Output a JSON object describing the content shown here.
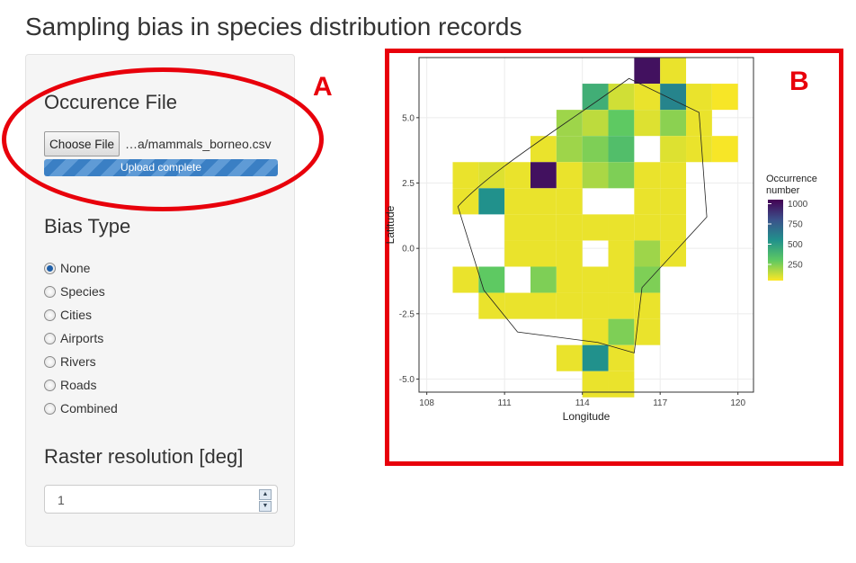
{
  "page_title": "Sampling bias in species distribution records",
  "sidebar": {
    "occurrence_file": {
      "heading": "Occurence File",
      "choose_button": "Choose File",
      "file_name": "…a/mammals_borneo.csv",
      "progress_text": "Upload complete",
      "progress": 1.0
    },
    "bias_type": {
      "heading": "Bias Type",
      "selected": "None",
      "options": [
        "None",
        "Species",
        "Cities",
        "Airports",
        "Rivers",
        "Roads",
        "Combined"
      ]
    },
    "raster_resolution": {
      "heading": "Raster resolution [deg]",
      "value": "1"
    }
  },
  "annotations": {
    "a": "A",
    "b": "B"
  },
  "colors": {
    "annotation_red": "#e8000b",
    "progress_blue": "#3a7fc4"
  },
  "chart_data": {
    "type": "heatmap",
    "title": "",
    "xlabel": "Longitude",
    "ylabel": "Latitude",
    "xlim": [
      107.7,
      120.6
    ],
    "ylim": [
      -5.5,
      7.3
    ],
    "x_ticks": [
      "108",
      "111",
      "114",
      "117",
      "120"
    ],
    "x_tick_values": [
      108,
      111,
      114,
      117,
      120
    ],
    "y_ticks": [
      "5.0",
      "2.5",
      "0.0",
      "-2.5",
      "-5.0"
    ],
    "y_tick_values": [
      5.0,
      2.5,
      0.0,
      -2.5,
      -5.0
    ],
    "grid": true,
    "legend": {
      "title_line1": "Occurrence",
      "title_line2": "number",
      "labels": [
        "1000",
        "750",
        "500",
        "250"
      ],
      "label_values": [
        1000,
        750,
        500,
        250
      ],
      "min": 50,
      "max": 1050,
      "placement": "right"
    },
    "cells": [
      {
        "lon": 116.5,
        "lat": 6.8,
        "v": 1000
      },
      {
        "lon": 117.5,
        "lat": 6.8,
        "v": 80
      },
      {
        "lon": 114.5,
        "lat": 5.8,
        "v": 420
      },
      {
        "lon": 115.5,
        "lat": 5.8,
        "v": 120
      },
      {
        "lon": 116.5,
        "lat": 5.8,
        "v": 80
      },
      {
        "lon": 117.5,
        "lat": 5.8,
        "v": 600
      },
      {
        "lon": 118.5,
        "lat": 5.8,
        "v": 80
      },
      {
        "lon": 119.5,
        "lat": 5.8,
        "v": 60
      },
      {
        "lon": 113.5,
        "lat": 4.8,
        "v": 200
      },
      {
        "lon": 114.5,
        "lat": 4.8,
        "v": 150
      },
      {
        "lon": 115.5,
        "lat": 4.8,
        "v": 300
      },
      {
        "lon": 116.5,
        "lat": 4.8,
        "v": 100
      },
      {
        "lon": 117.5,
        "lat": 4.8,
        "v": 230
      },
      {
        "lon": 118.5,
        "lat": 4.8,
        "v": 80
      },
      {
        "lon": 112.5,
        "lat": 3.8,
        "v": 80
      },
      {
        "lon": 113.5,
        "lat": 3.8,
        "v": 200
      },
      {
        "lon": 114.5,
        "lat": 3.8,
        "v": 250
      },
      {
        "lon": 115.5,
        "lat": 3.8,
        "v": 350
      },
      {
        "lon": 117.5,
        "lat": 3.8,
        "v": 100
      },
      {
        "lon": 118.5,
        "lat": 3.8,
        "v": 80
      },
      {
        "lon": 119.5,
        "lat": 3.8,
        "v": 60
      },
      {
        "lon": 109.5,
        "lat": 2.8,
        "v": 80
      },
      {
        "lon": 110.5,
        "lat": 2.8,
        "v": 100
      },
      {
        "lon": 111.5,
        "lat": 2.8,
        "v": 80
      },
      {
        "lon": 112.5,
        "lat": 2.8,
        "v": 1000
      },
      {
        "lon": 113.5,
        "lat": 2.8,
        "v": 80
      },
      {
        "lon": 114.5,
        "lat": 2.8,
        "v": 180
      },
      {
        "lon": 115.5,
        "lat": 2.8,
        "v": 250
      },
      {
        "lon": 116.5,
        "lat": 2.8,
        "v": 80
      },
      {
        "lon": 117.5,
        "lat": 2.8,
        "v": 80
      },
      {
        "lon": 109.5,
        "lat": 1.8,
        "v": 80
      },
      {
        "lon": 110.5,
        "lat": 1.8,
        "v": 550
      },
      {
        "lon": 111.5,
        "lat": 1.8,
        "v": 80
      },
      {
        "lon": 112.5,
        "lat": 1.8,
        "v": 80
      },
      {
        "lon": 113.5,
        "lat": 1.8,
        "v": 80
      },
      {
        "lon": 116.5,
        "lat": 1.8,
        "v": 80
      },
      {
        "lon": 117.5,
        "lat": 1.8,
        "v": 80
      },
      {
        "lon": 111.5,
        "lat": 0.8,
        "v": 80
      },
      {
        "lon": 112.5,
        "lat": 0.8,
        "v": 80
      },
      {
        "lon": 113.5,
        "lat": 0.8,
        "v": 80
      },
      {
        "lon": 114.5,
        "lat": 0.8,
        "v": 80
      },
      {
        "lon": 115.5,
        "lat": 0.8,
        "v": 80
      },
      {
        "lon": 116.5,
        "lat": 0.8,
        "v": 80
      },
      {
        "lon": 117.5,
        "lat": 0.8,
        "v": 80
      },
      {
        "lon": 111.5,
        "lat": -0.2,
        "v": 80
      },
      {
        "lon": 112.5,
        "lat": -0.2,
        "v": 80
      },
      {
        "lon": 113.5,
        "lat": -0.2,
        "v": 80
      },
      {
        "lon": 115.5,
        "lat": -0.2,
        "v": 80
      },
      {
        "lon": 116.5,
        "lat": -0.2,
        "v": 200
      },
      {
        "lon": 117.5,
        "lat": -0.2,
        "v": 80
      },
      {
        "lon": 109.5,
        "lat": -1.2,
        "v": 80
      },
      {
        "lon": 110.5,
        "lat": -1.2,
        "v": 300
      },
      {
        "lon": 112.5,
        "lat": -1.2,
        "v": 250
      },
      {
        "lon": 113.5,
        "lat": -1.2,
        "v": 80
      },
      {
        "lon": 114.5,
        "lat": -1.2,
        "v": 80
      },
      {
        "lon": 115.5,
        "lat": -1.2,
        "v": 80
      },
      {
        "lon": 116.5,
        "lat": -1.2,
        "v": 250
      },
      {
        "lon": 110.5,
        "lat": -2.2,
        "v": 80
      },
      {
        "lon": 111.5,
        "lat": -2.2,
        "v": 80
      },
      {
        "lon": 112.5,
        "lat": -2.2,
        "v": 80
      },
      {
        "lon": 113.5,
        "lat": -2.2,
        "v": 80
      },
      {
        "lon": 114.5,
        "lat": -2.2,
        "v": 80
      },
      {
        "lon": 115.5,
        "lat": -2.2,
        "v": 80
      },
      {
        "lon": 116.5,
        "lat": -2.2,
        "v": 80
      },
      {
        "lon": 114.5,
        "lat": -3.2,
        "v": 80
      },
      {
        "lon": 115.5,
        "lat": -3.2,
        "v": 250
      },
      {
        "lon": 116.5,
        "lat": -3.2,
        "v": 80
      },
      {
        "lon": 113.5,
        "lat": -4.2,
        "v": 80
      },
      {
        "lon": 114.5,
        "lat": -4.2,
        "v": 550
      },
      {
        "lon": 115.5,
        "lat": -4.2,
        "v": 80
      },
      {
        "lon": 114.5,
        "lat": -5.2,
        "v": 80
      },
      {
        "lon": 115.5,
        "lat": -5.2,
        "v": 80
      }
    ]
  }
}
